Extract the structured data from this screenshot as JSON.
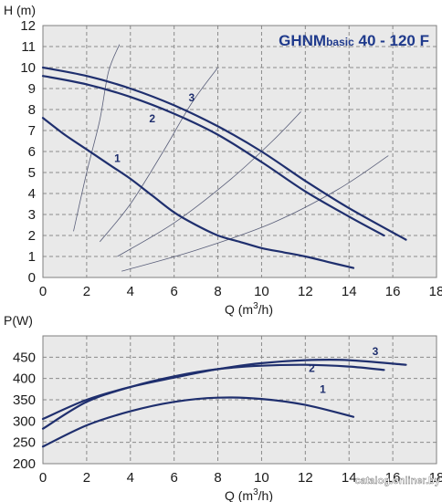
{
  "chart_data": [
    {
      "type": "line",
      "title_main": "GHNM",
      "title_small": "basic",
      "title_tail": " 40 - 120 F",
      "ylabel": "H (m)",
      "xlabel": "Q (m",
      "xlabel_sup": "3",
      "xlabel_tail": "/h)",
      "xlim": [
        0,
        18
      ],
      "ylim": [
        0,
        12
      ],
      "x_ticks": [
        "0",
        "2",
        "4",
        "6",
        "8",
        "10",
        "12",
        "14",
        "16",
        "18"
      ],
      "y_ticks": [
        "0",
        "1",
        "2",
        "3",
        "4",
        "5",
        "6",
        "7",
        "8",
        "9",
        "10",
        "11",
        "12"
      ],
      "grid": true,
      "series": [
        {
          "name": "1",
          "x": [
            0,
            1,
            2,
            3,
            4,
            5,
            6,
            7,
            8,
            9,
            10,
            11,
            12,
            13,
            14.2
          ],
          "y": [
            7.6,
            6.8,
            6.1,
            5.4,
            4.7,
            3.9,
            3.1,
            2.5,
            2.0,
            1.7,
            1.4,
            1.2,
            1.0,
            0.75,
            0.45
          ]
        },
        {
          "name": "2",
          "x": [
            0,
            2,
            4,
            6,
            8,
            10,
            12,
            14,
            15.6
          ],
          "y": [
            9.6,
            9.2,
            8.6,
            7.8,
            6.8,
            5.5,
            4.1,
            2.9,
            2.0
          ]
        },
        {
          "name": "3",
          "x": [
            0,
            2,
            4,
            6,
            8,
            10,
            12,
            14,
            16.6
          ],
          "y": [
            10.0,
            9.6,
            9.0,
            8.2,
            7.2,
            6.0,
            4.6,
            3.3,
            1.8
          ]
        }
      ],
      "system_curves": [
        {
          "x": [
            1.4,
            2.0,
            2.6,
            3.0,
            3.5
          ],
          "y": [
            2.2,
            5.0,
            7.5,
            9.8,
            11.1
          ]
        },
        {
          "x": [
            2.6,
            4.0,
            5.5,
            6.8,
            8.0
          ],
          "y": [
            1.7,
            3.5,
            6.0,
            8.3,
            10.0
          ]
        },
        {
          "x": [
            3.4,
            6.0,
            8.5,
            10.5,
            11.8
          ],
          "y": [
            1.0,
            2.6,
            4.6,
            6.5,
            7.9
          ]
        },
        {
          "x": [
            3.6,
            7.0,
            10.5,
            13.5,
            15.8
          ],
          "y": [
            0.3,
            1.3,
            2.6,
            4.2,
            5.8
          ]
        }
      ],
      "label_positions": [
        {
          "text": "1",
          "x": 3.4,
          "y": 5.5
        },
        {
          "text": "2",
          "x": 5.0,
          "y": 7.4
        },
        {
          "text": "3",
          "x": 6.8,
          "y": 8.4
        }
      ]
    },
    {
      "type": "line",
      "ylabel": "P(W)",
      "xlabel": "Q (m",
      "xlabel_sup": "3",
      "xlabel_tail": "/h)",
      "xlim": [
        0,
        18
      ],
      "ylim": [
        200,
        500
      ],
      "x_ticks": [
        "0",
        "2",
        "4",
        "6",
        "8",
        "10",
        "12",
        "14",
        "16",
        "18"
      ],
      "y_ticks": [
        "200",
        "250",
        "300",
        "350",
        "400",
        "450"
      ],
      "grid": true,
      "series": [
        {
          "name": "1",
          "x": [
            0,
            2,
            4,
            6,
            8,
            10,
            12,
            14.2
          ],
          "y": [
            240,
            290,
            323,
            345,
            355,
            352,
            338,
            310
          ]
        },
        {
          "name": "2",
          "x": [
            0,
            2,
            4,
            6,
            8,
            10,
            12,
            14,
            15.6
          ],
          "y": [
            282,
            345,
            380,
            405,
            422,
            430,
            432,
            428,
            420
          ]
        },
        {
          "name": "3",
          "x": [
            0,
            2,
            4,
            6,
            8,
            10,
            12,
            14,
            16.6
          ],
          "y": [
            305,
            350,
            380,
            402,
            422,
            436,
            443,
            443,
            432
          ]
        }
      ],
      "label_positions": [
        {
          "text": "1",
          "x": 12.8,
          "y": 366
        },
        {
          "text": "2",
          "x": 12.3,
          "y": 415
        },
        {
          "text": "3",
          "x": 15.2,
          "y": 455
        }
      ]
    }
  ],
  "watermark": "catalog.onliner.by"
}
